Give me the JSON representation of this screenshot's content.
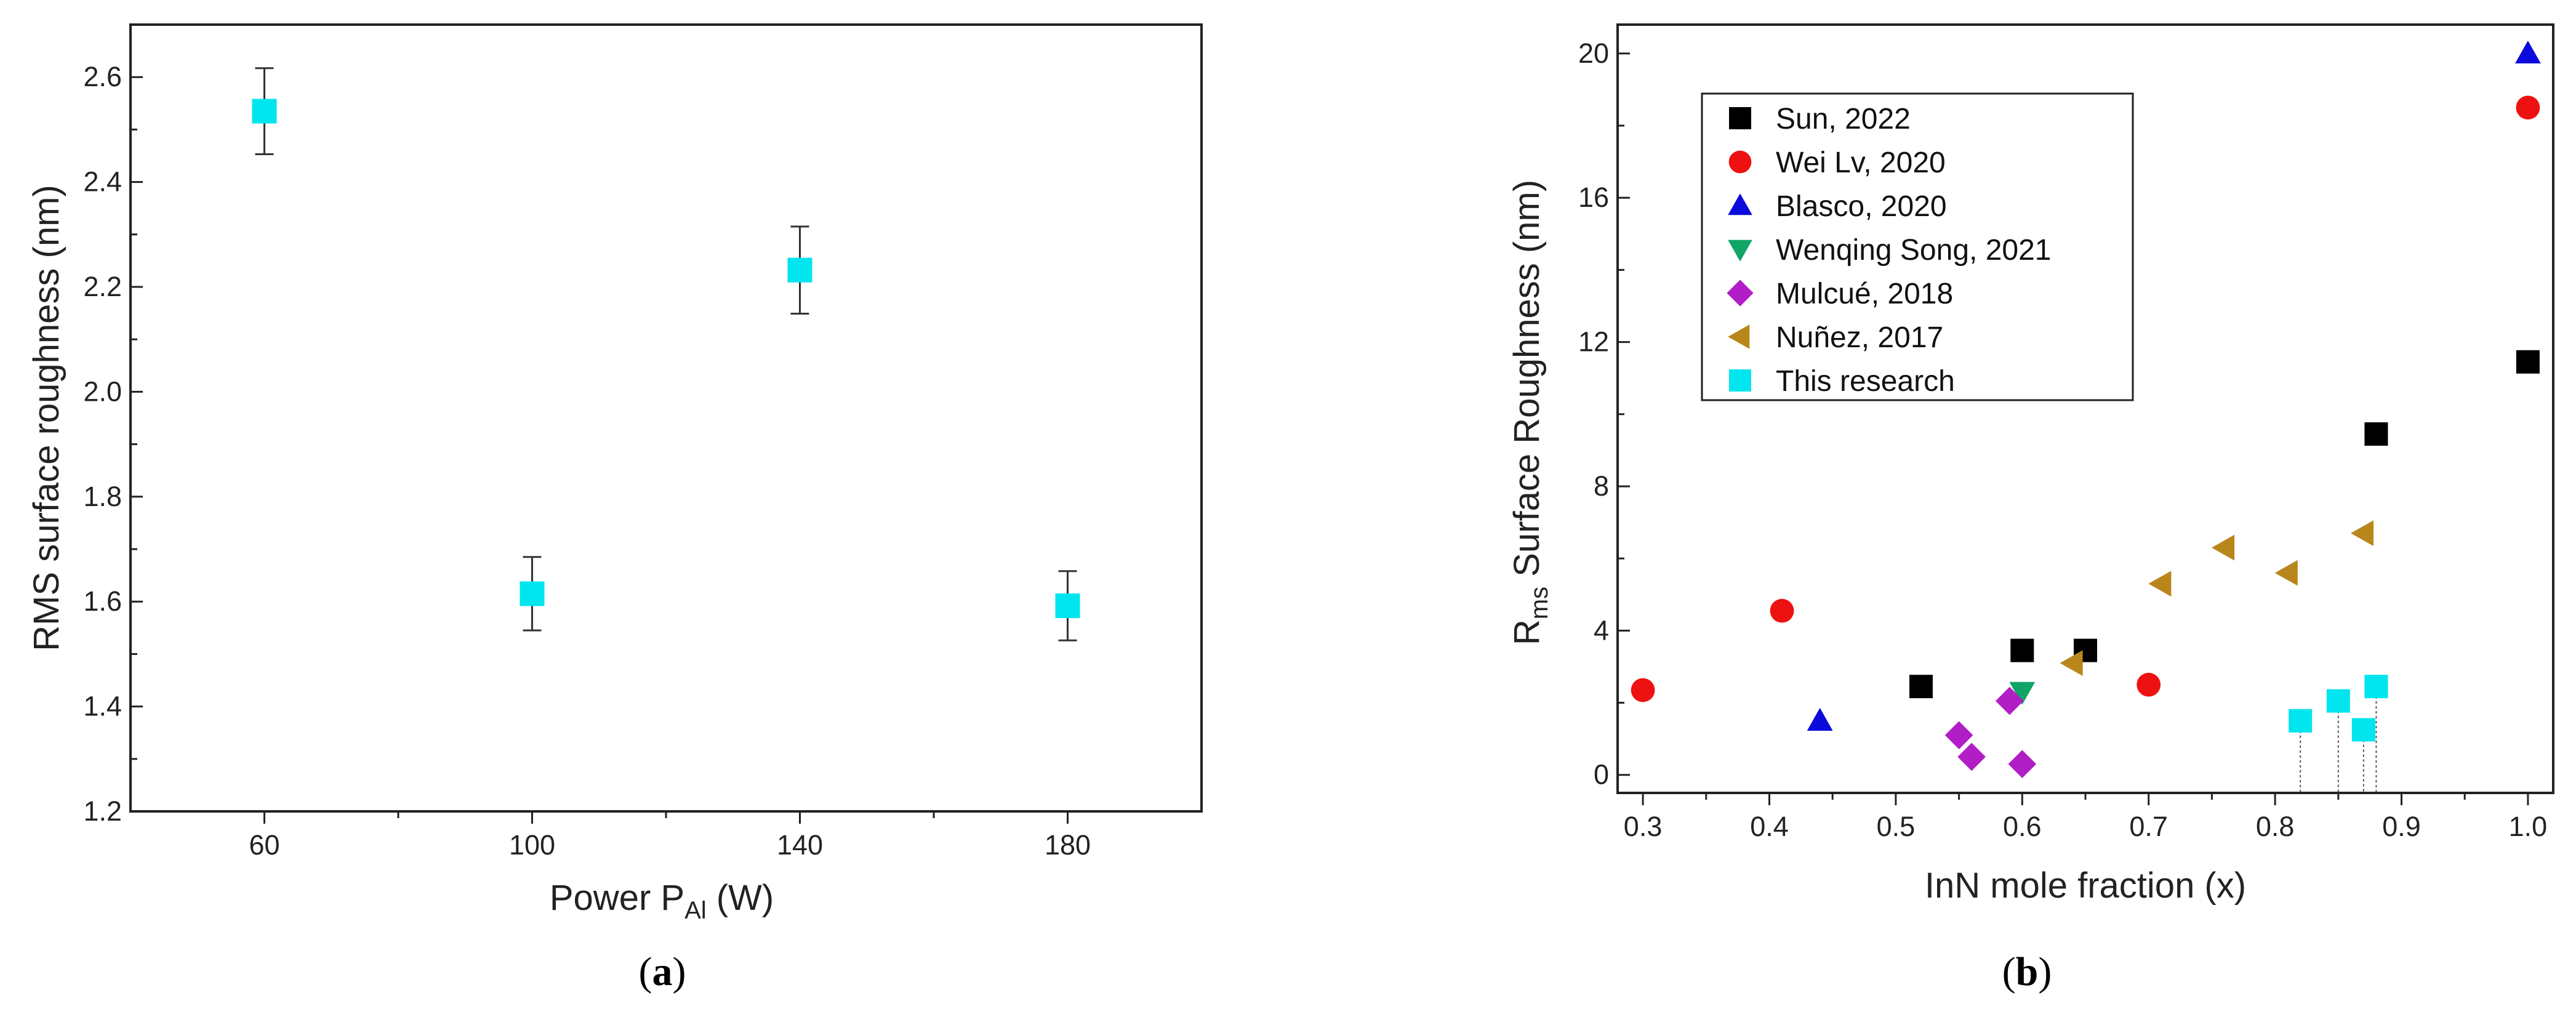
{
  "panels": {
    "a": {
      "label_paren_open": "(",
      "label_letter": "a",
      "label_paren_close": ")"
    },
    "b": {
      "label_paren_open": "(",
      "label_letter": "b",
      "label_paren_close": ")"
    }
  },
  "chart_data": [
    {
      "type": "scatter",
      "title": "",
      "xlabel_main": "Power P",
      "xlabel_sub": "Al",
      "xlabel_unit": " (W)",
      "ylabel": "RMS surface roughness (nm)",
      "xlim": [
        40,
        200
      ],
      "ylim": [
        1.2,
        2.7
      ],
      "xticks": [
        "60",
        "100",
        "140",
        "180"
      ],
      "yticks": [
        "1.2",
        "1.4",
        "1.6",
        "1.8",
        "2.0",
        "2.2",
        "2.4",
        "2.6"
      ],
      "marker_color": "#00e5ee",
      "points": [
        {
          "x": 60,
          "y": 2.535,
          "err": 0.082
        },
        {
          "x": 100,
          "y": 1.615,
          "err": 0.07
        },
        {
          "x": 140,
          "y": 2.232,
          "err": 0.083
        },
        {
          "x": 180,
          "y": 1.592,
          "err": 0.066
        }
      ]
    },
    {
      "type": "scatter",
      "title": "",
      "xlabel": "InN mole fraction (x)",
      "ylabel_main": "R",
      "ylabel_sub": "ms",
      "ylabel_rest": " Surface Roughness (nm)",
      "xlim": [
        0.28,
        1.02
      ],
      "ylim": [
        -0.5,
        20.8
      ],
      "xticks": [
        "0.3",
        "0.4",
        "0.5",
        "0.6",
        "0.7",
        "0.8",
        "0.9",
        "1.0"
      ],
      "yticks": [
        "0",
        "4",
        "8",
        "12",
        "16",
        "20"
      ],
      "legend_position": "top-left",
      "series": [
        {
          "name": "Sun, 2022",
          "marker": "square",
          "color": "#000000",
          "points": [
            [
              0.52,
              2.45
            ],
            [
              0.6,
              3.45
            ],
            [
              0.65,
              3.45
            ],
            [
              0.88,
              9.45
            ],
            [
              1.0,
              11.45
            ]
          ]
        },
        {
          "name": "Wei Lv, 2020",
          "marker": "circle",
          "color": "#ee1111",
          "points": [
            [
              0.3,
              2.35
            ],
            [
              0.41,
              4.55
            ],
            [
              0.7,
              2.5
            ],
            [
              1.0,
              18.5
            ]
          ]
        },
        {
          "name": "Blasco, 2020",
          "marker": "triangle-up",
          "color": "#0b0bdd",
          "points": [
            [
              0.44,
              1.5
            ],
            [
              1.0,
              20.0
            ]
          ]
        },
        {
          "name": "Wenqing Song, 2021",
          "marker": "triangle-down",
          "color": "#10a567",
          "points": [
            [
              0.6,
              2.3
            ]
          ]
        },
        {
          "name": "Mulcué, 2018",
          "marker": "diamond",
          "color": "#b11ec6",
          "points": [
            [
              0.55,
              1.1
            ],
            [
              0.56,
              0.5
            ],
            [
              0.59,
              2.05
            ],
            [
              0.6,
              0.3
            ]
          ]
        },
        {
          "name": "Nuñez, 2017",
          "marker": "triangle-left",
          "color": "#b8861b",
          "points": [
            [
              0.64,
              3.1
            ],
            [
              0.71,
              5.3
            ],
            [
              0.76,
              6.3
            ],
            [
              0.81,
              5.6
            ],
            [
              0.87,
              6.7
            ]
          ]
        },
        {
          "name": "This research",
          "marker": "square",
          "color": "#00e5ee",
          "droplines": true,
          "points": [
            [
              0.82,
              1.5
            ],
            [
              0.85,
              2.05
            ],
            [
              0.87,
              1.25
            ],
            [
              0.88,
              2.45
            ]
          ]
        }
      ]
    }
  ]
}
